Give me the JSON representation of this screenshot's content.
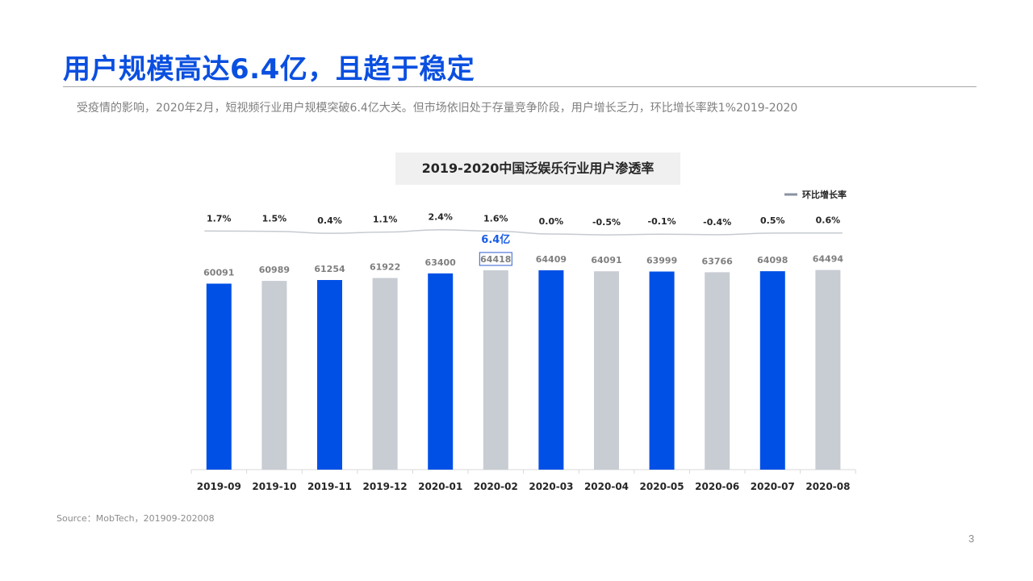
{
  "slide": {
    "title": "用户规模高达6.4亿，且趋于稳定",
    "subtitle": "受疫情的影响，2020年2月，短视频行业用户规模突破6.4亿大关。但市场依旧处于存量竞争阶段，用户增长乏力，环比增长率跌1%2019-2020",
    "source": "Source：MobTech，201909-202008",
    "page_number": "3"
  },
  "colors": {
    "title": "#0a4fe0",
    "bar_blue": "#0050e6",
    "bar_gray": "#c8ccd3",
    "line": "#c6cad0",
    "legend_line": "#8a93a3",
    "callout": "#1a5ce6"
  },
  "chart_data": {
    "type": "bar",
    "title": "2019-2020中国泛娱乐行业用户渗透率",
    "categories": [
      "2019-09",
      "2019-10",
      "2019-11",
      "2019-12",
      "2020-01",
      "2020-02",
      "2020-03",
      "2020-04",
      "2020-05",
      "2020-06",
      "2020-07",
      "2020-08"
    ],
    "series": [
      {
        "values": [
          60091,
          60989,
          61254,
          61922,
          63400,
          64418,
          64409,
          64091,
          63999,
          63766,
          64098,
          64494
        ],
        "value_labels": [
          "60091",
          "60989",
          "61254",
          "61922",
          "63400",
          "64418",
          "64409",
          "64091",
          "63999",
          "63766",
          "64098",
          "64494"
        ],
        "bar_colors": [
          "blue",
          "gray",
          "blue",
          "gray",
          "blue",
          "gray",
          "blue",
          "gray",
          "blue",
          "gray",
          "blue",
          "gray"
        ]
      },
      {
        "name": "环比增长率",
        "type": "line",
        "values": [
          1.7,
          1.5,
          0.4,
          1.1,
          2.4,
          1.6,
          0.0,
          -0.5,
          -0.1,
          -0.4,
          0.5,
          0.6
        ],
        "value_labels": [
          "1.7%",
          "1.5%",
          "0.4%",
          "1.1%",
          "2.4%",
          "1.6%",
          "0.0%",
          "-0.5%",
          "-0.1%",
          "-0.4%",
          "0.5%",
          "0.6%"
        ]
      }
    ],
    "ylim": [
      0,
      67000
    ],
    "grid": false,
    "legend": "top-right",
    "callout": {
      "category": "2020-02",
      "text": "6.4亿"
    }
  }
}
